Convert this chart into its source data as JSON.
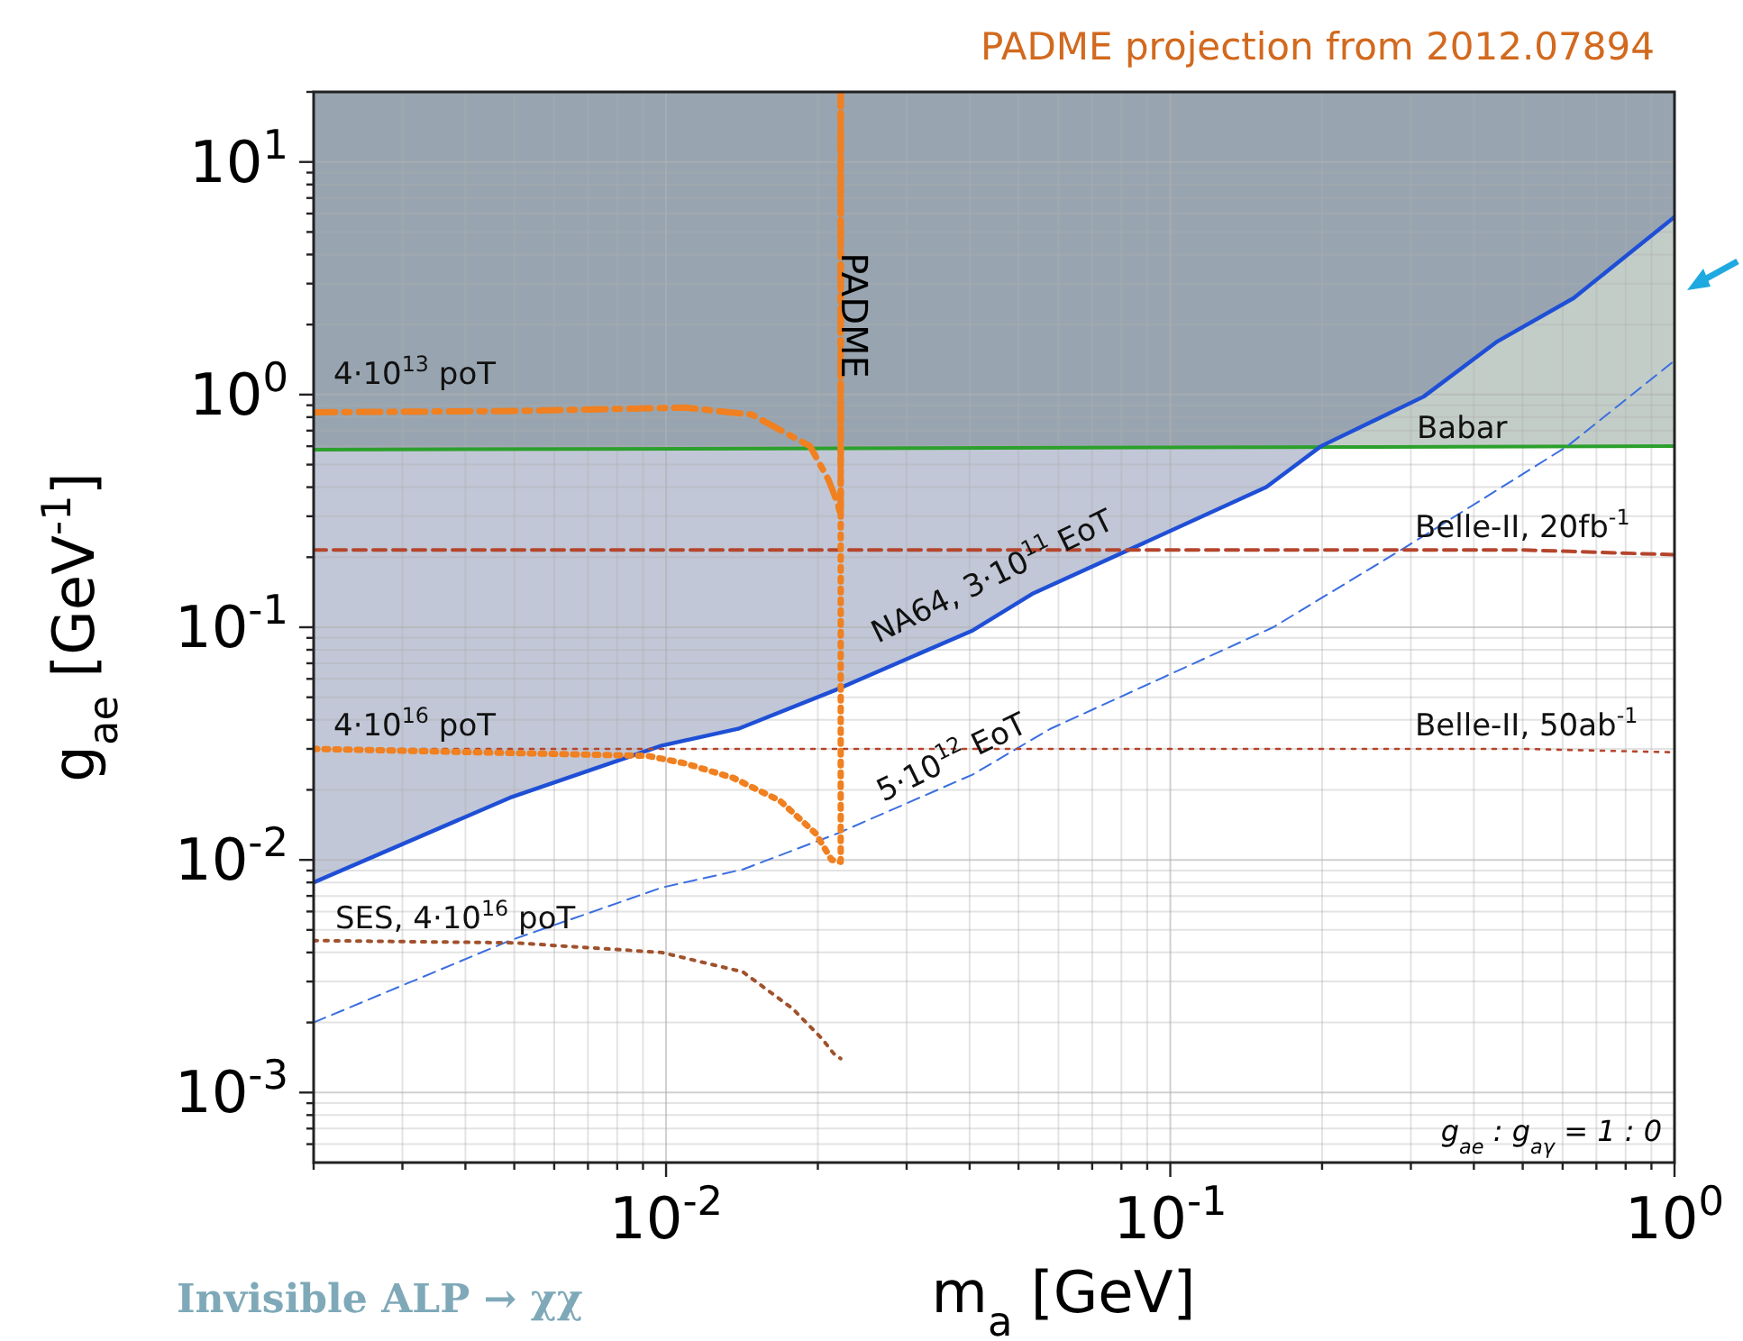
{
  "chart_data": {
    "type": "line",
    "title": "PADME projection from 2012.07894",
    "xlabel": "m$_{a}$  [GeV]",
    "ylabel": "g$_{ae}$  [GeV$^{-1}$]",
    "log": "xy",
    "grid": true,
    "legend": false,
    "xlim": [
      0.002,
      1
    ],
    "ylim": [
      0.0005,
      20
    ],
    "xticks": [
      {
        "value": 0.002,
        "label": null
      },
      {
        "value": 0.003,
        "label": null
      },
      {
        "value": 0.004,
        "label": null
      },
      {
        "value": 0.005,
        "label": null
      },
      {
        "value": 0.006,
        "label": null
      },
      {
        "value": 0.007,
        "label": null
      },
      {
        "value": 0.008,
        "label": null
      },
      {
        "value": 0.009,
        "label": null
      },
      {
        "value": 0.01,
        "label": "10$^{-2}$"
      },
      {
        "value": 0.02,
        "label": null
      },
      {
        "value": 0.03,
        "label": null
      },
      {
        "value": 0.04,
        "label": null
      },
      {
        "value": 0.05,
        "label": null
      },
      {
        "value": 0.06,
        "label": null
      },
      {
        "value": 0.07,
        "label": null
      },
      {
        "value": 0.08,
        "label": null
      },
      {
        "value": 0.09,
        "label": null
      },
      {
        "value": 0.1,
        "label": "10$^{-1}$"
      },
      {
        "value": 0.2,
        "label": null
      },
      {
        "value": 0.3,
        "label": null
      },
      {
        "value": 0.4,
        "label": null
      },
      {
        "value": 0.5,
        "label": null
      },
      {
        "value": 0.6,
        "label": null
      },
      {
        "value": 0.7,
        "label": null
      },
      {
        "value": 0.8,
        "label": null
      },
      {
        "value": 0.9,
        "label": null
      },
      {
        "value": 1,
        "label": "10$^{0}$"
      }
    ],
    "yticks": [
      {
        "value": 0.0006,
        "label": null
      },
      {
        "value": 0.0007,
        "label": null
      },
      {
        "value": 0.0008,
        "label": null
      },
      {
        "value": 0.0009,
        "label": null
      },
      {
        "value": 0.001,
        "label": "10$^{-3}$"
      },
      {
        "value": 0.002,
        "label": null
      },
      {
        "value": 0.003,
        "label": null
      },
      {
        "value": 0.004,
        "label": null
      },
      {
        "value": 0.005,
        "label": null
      },
      {
        "value": 0.006,
        "label": null
      },
      {
        "value": 0.007,
        "label": null
      },
      {
        "value": 0.008,
        "label": null
      },
      {
        "value": 0.009,
        "label": null
      },
      {
        "value": 0.01,
        "label": "10$^{-2}$"
      },
      {
        "value": 0.02,
        "label": null
      },
      {
        "value": 0.03,
        "label": null
      },
      {
        "value": 0.04,
        "label": null
      },
      {
        "value": 0.05,
        "label": null
      },
      {
        "value": 0.06,
        "label": null
      },
      {
        "value": 0.07,
        "label": null
      },
      {
        "value": 0.08,
        "label": null
      },
      {
        "value": 0.09,
        "label": null
      },
      {
        "value": 0.1,
        "label": "10$^{-1}$"
      },
      {
        "value": 0.2,
        "label": null
      },
      {
        "value": 0.3,
        "label": null
      },
      {
        "value": 0.4,
        "label": null
      },
      {
        "value": 0.5,
        "label": null
      },
      {
        "value": 0.6,
        "label": null
      },
      {
        "value": 0.7,
        "label": null
      },
      {
        "value": 0.8,
        "label": null
      },
      {
        "value": 0.9,
        "label": null
      },
      {
        "value": 1,
        "label": "10$^{0}$"
      },
      {
        "value": 2,
        "label": null
      },
      {
        "value": 3,
        "label": null
      },
      {
        "value": 4,
        "label": null
      },
      {
        "value": 5,
        "label": null
      },
      {
        "value": 6,
        "label": null
      },
      {
        "value": 7,
        "label": null
      },
      {
        "value": 8,
        "label": null
      },
      {
        "value": 9,
        "label": null
      },
      {
        "value": 10,
        "label": "10$^{1}$"
      },
      {
        "value": 20,
        "label": null
      }
    ],
    "series": [
      {
        "name": "Babar",
        "color": "#2ca02c",
        "line_style": "solid",
        "x": [
          0.002,
          1
        ],
        "values": [
          0.58,
          0.6
        ],
        "lower": [
          0.58,
          0.6
        ],
        "upper": [
          20,
          20
        ]
      },
      {
        "name": "NA64, 3·10$^{11}$ EoT",
        "color": "#1f4fd6",
        "line_style": "solid",
        "x": [
          0.002,
          0.0049,
          0.0098,
          0.0139,
          0.0218,
          0.0406,
          0.0532,
          0.155,
          0.199,
          0.318,
          0.443,
          0.631,
          1
        ],
        "values": [
          0.008,
          0.0185,
          0.031,
          0.0366,
          0.054,
          0.097,
          0.139,
          0.4,
          0.6,
          0.98,
          1.68,
          2.6,
          5.8
        ],
        "lower": [
          0.008,
          0.0185,
          0.031,
          0.0366,
          0.054,
          0.097,
          0.139,
          0.4,
          0.6,
          0.98,
          1.68,
          2.6,
          5.8
        ],
        "upper": [
          20,
          20,
          20,
          20,
          20,
          20,
          20,
          20,
          20,
          20,
          20,
          20,
          20
        ]
      },
      {
        "name": "5·10$^{12}$ EoT",
        "color": "#3a6ee0",
        "line_style": "dashed",
        "x": [
          0.002,
          0.0049,
          0.0098,
          0.0142,
          0.0219,
          0.0406,
          0.0577,
          0.16,
          0.292,
          0.613,
          1
        ],
        "values": [
          0.002,
          0.0045,
          0.0076,
          0.0091,
          0.013,
          0.0233,
          0.0365,
          0.1,
          0.22,
          0.6,
          1.4
        ]
      },
      {
        "name": "Belle-II, 20fb$^{-1}$",
        "color": "#b5452c",
        "line_style": "dashed",
        "x": [
          0.002,
          0.5,
          1
        ],
        "values": [
          0.215,
          0.215,
          0.205
        ]
      },
      {
        "name": "Belle-II, 50ab$^{-1}$",
        "color": "#b5452c",
        "line_style": "dotted",
        "x": [
          0.002,
          0.5,
          1
        ],
        "values": [
          0.03,
          0.03,
          0.029
        ]
      },
      {
        "name": "4·10$^{13}$ poT",
        "color": "#f08020",
        "line_style": "dashdot",
        "x": [
          0.002,
          0.005,
          0.0109,
          0.0148,
          0.0193,
          0.021,
          0.0219,
          0.0222,
          0.0222
        ],
        "values": [
          0.84,
          0.85,
          0.88,
          0.82,
          0.6,
          0.43,
          0.34,
          0.3,
          20
        ]
      },
      {
        "name": "4·10$^{16}$ poT",
        "color": "#f08020",
        "line_style": "dotted",
        "x": [
          0.002,
          0.0092,
          0.0109,
          0.0136,
          0.0168,
          0.0198,
          0.0213,
          0.0222,
          0.0222
        ],
        "values": [
          0.03,
          0.028,
          0.026,
          0.0225,
          0.018,
          0.013,
          0.01,
          0.0098,
          20
        ]
      },
      {
        "name": "SES, 4·10$^{16}$ poT",
        "color": "#a0522d",
        "line_style": "dotted",
        "x": [
          0.002,
          0.005,
          0.0098,
          0.0142,
          0.0178,
          0.0204,
          0.0215,
          0.0222
        ],
        "values": [
          0.0045,
          0.0044,
          0.004,
          0.0033,
          0.0023,
          0.0017,
          0.00147,
          0.0014
        ]
      }
    ],
    "annotations": [
      "PADME",
      "g$_{ae}$ : g$_{aγ}$ = 1 : 0",
      "Invisible ALP → χχ"
    ]
  }
}
